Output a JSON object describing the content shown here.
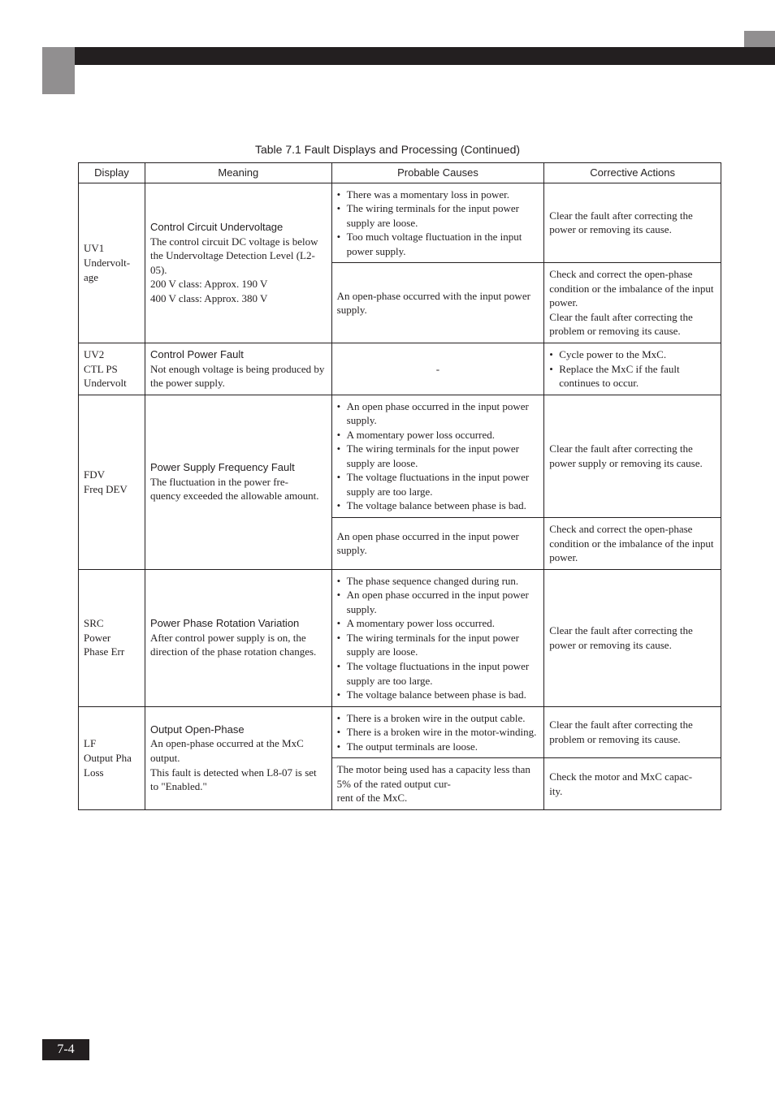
{
  "caption": "Table 7.1  Fault Displays and Processing (Continued)",
  "headers": {
    "display": "Display",
    "meaning": "Meaning",
    "causes": "Probable Causes",
    "actions": "Corrective Actions"
  },
  "rows": {
    "uv1": {
      "display": "UV1\nUndervolt-\nage",
      "meaning_title": "Control Circuit Undervoltage",
      "meaning_body": "The control circuit DC voltage is below the Undervoltage Detection Level (L2-05).\n200 V class: Approx. 190 V\n400 V class: Approx. 380 V",
      "causes1": [
        "There was a momentary loss in power.",
        "The wiring terminals for the input power supply are loose.",
        "Too much voltage fluctuation in the input power supply."
      ],
      "actions1": "Clear the fault after correcting the power or removing its cause.",
      "causes2_text": "An open-phase occurred with the input power supply.",
      "actions2": "Check and correct the open-phase condition or the imbalance of the input power.\nClear the fault after correcting the problem or removing its cause."
    },
    "uv2": {
      "display": "UV2\nCTL PS\nUndervolt",
      "meaning_title": "Control Power Fault",
      "meaning_body": "Not enough voltage is being produced by the power supply.",
      "causes_text": "-",
      "actions": [
        "Cycle power to the MxC.",
        "Replace the MxC if the fault continues to occur."
      ]
    },
    "fdv": {
      "display": "FDV\nFreq DEV",
      "meaning_title": "Power Supply Frequency Fault",
      "meaning_body": "The fluctuation in the power fre-\nquency exceeded the allowable amount.",
      "causes1": [
        "An open phase occurred in the input power supply.",
        "A momentary power loss occurred.",
        "The wiring terminals for the input power supply are loose.",
        "The voltage fluctuations in the input power supply are too large.",
        "The voltage balance between phase is bad."
      ],
      "actions1": "Clear the fault after correcting the power supply or removing its cause.",
      "causes2_text": "An open phase occurred in the input power supply.",
      "actions2": "Check and correct the open-phase condition or the imbalance of the input power."
    },
    "src": {
      "display": "SRC\nPower\nPhase Err",
      "meaning_title": "Power Phase Rotation Variation",
      "meaning_body": "After control power supply is on, the direction of the phase rotation changes.",
      "causes": [
        "The phase sequence changed during run.",
        "An open phase occurred in the input power supply.",
        "A momentary power loss occurred.",
        "The wiring terminals for the input power supply are loose.",
        "The voltage fluctuations in the input power supply are too large.",
        "The voltage balance between phase is bad."
      ],
      "actions": "Clear the fault after correcting the power or removing its cause."
    },
    "lf": {
      "display": "LF\nOutput Pha\nLoss",
      "meaning_title": "Output Open-Phase",
      "meaning_body": "An open-phase occurred at the MxC output.\nThis fault is detected when L8-07 is set to \"Enabled.\"",
      "causes1": [
        "There is a broken wire in the output cable.",
        "There is a broken wire in the motor-winding.",
        "The output terminals are loose."
      ],
      "actions1": "Clear the fault after correcting the problem or removing its cause.",
      "causes2_text": "The motor being used has a capacity less than 5% of the rated output cur-\nrent of the MxC.",
      "actions2": "Check the motor and MxC capac-\nity."
    }
  },
  "page_number": "7-4"
}
